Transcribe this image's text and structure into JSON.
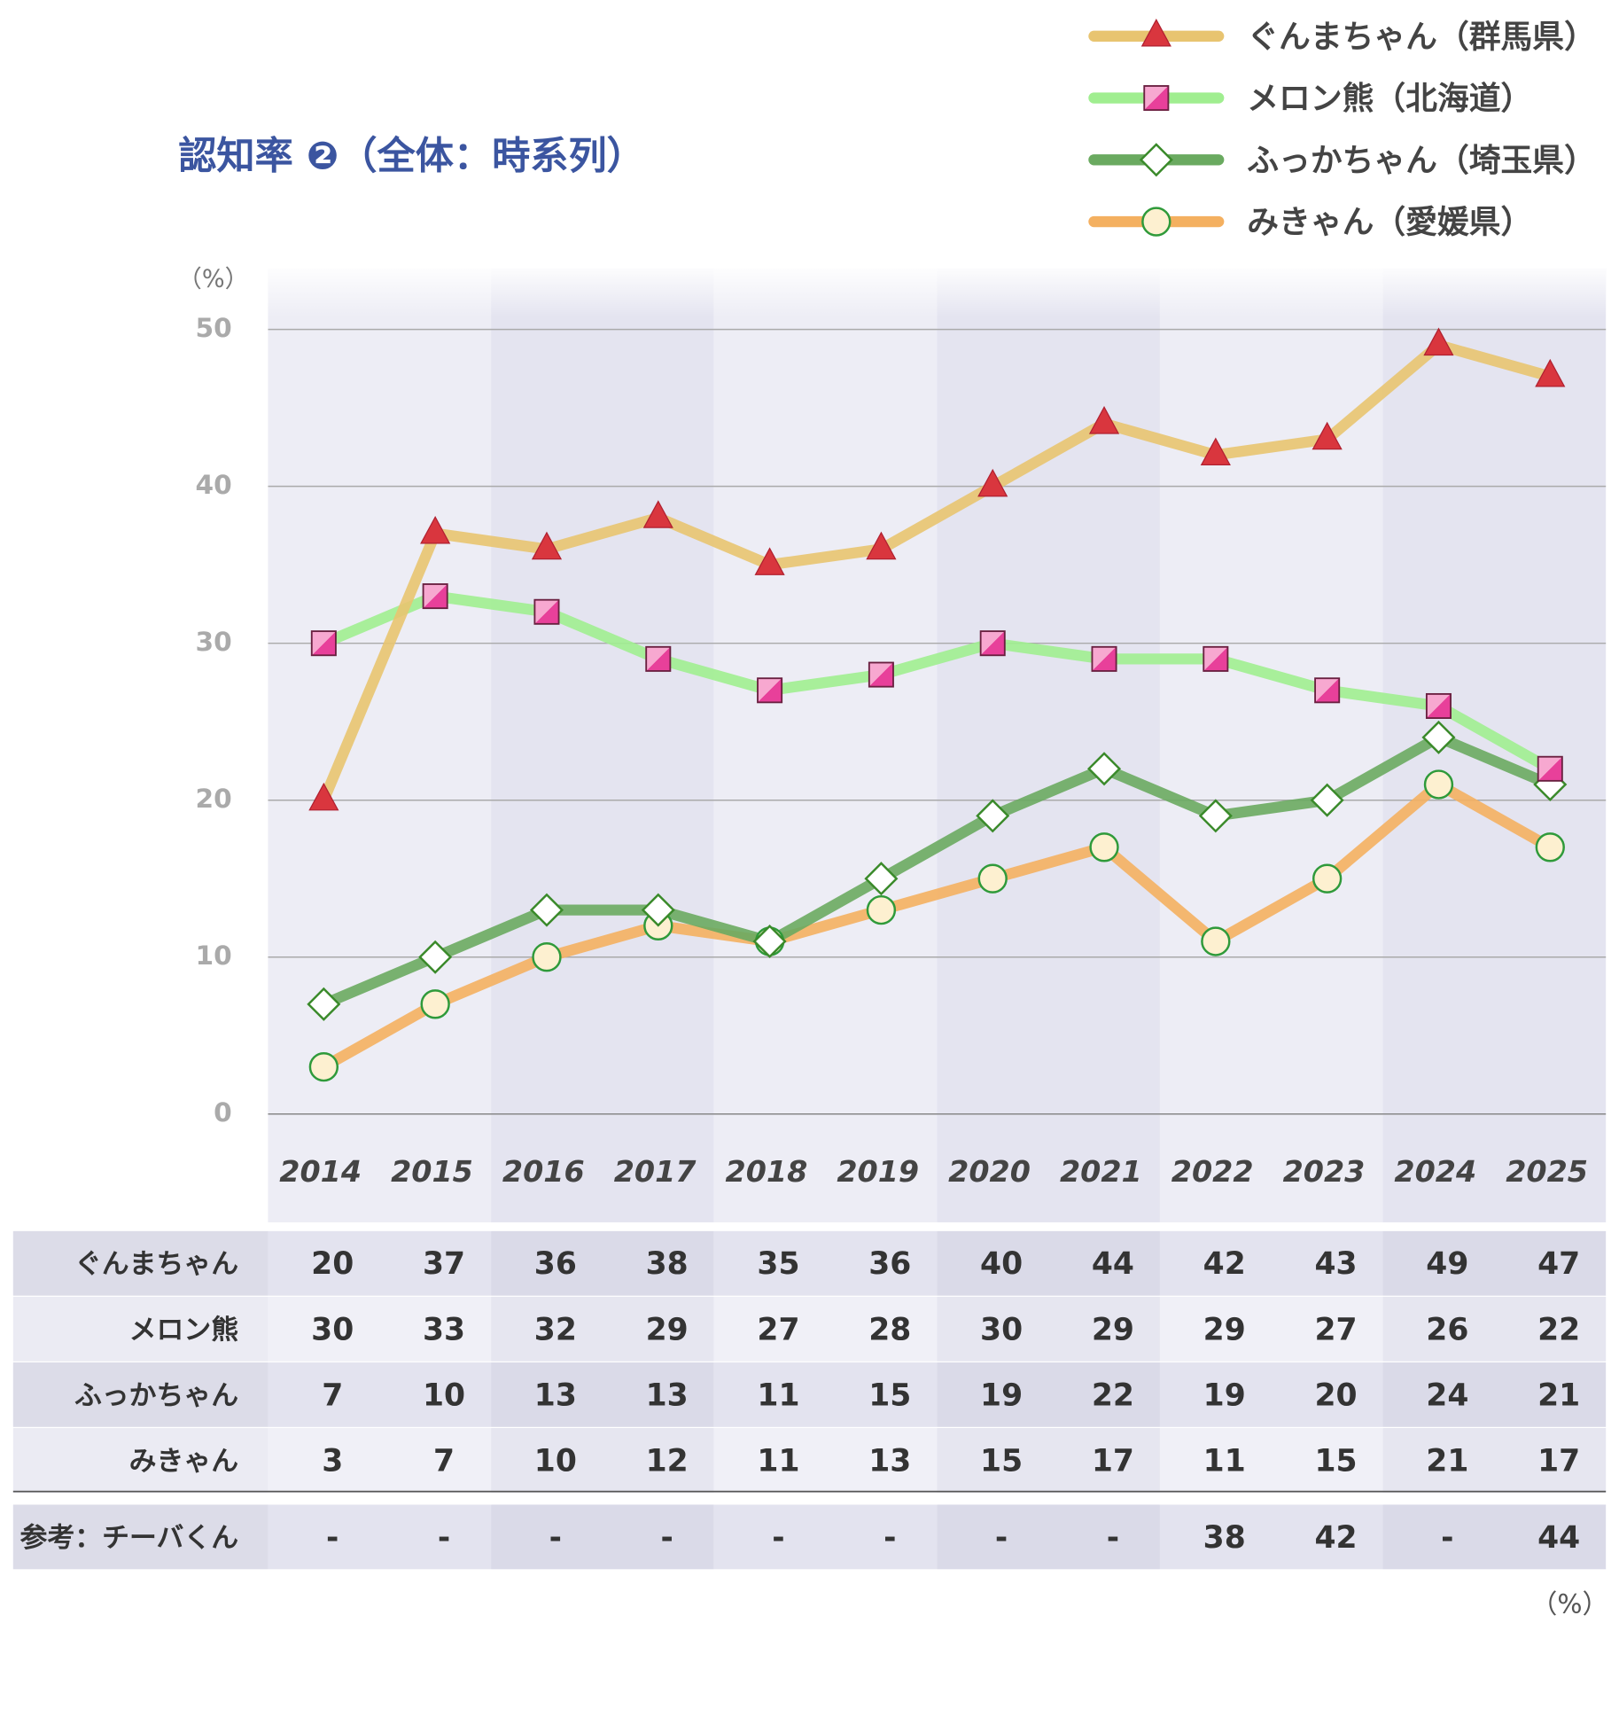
{
  "chart_data": {
    "type": "line",
    "title": "認知率 ❷（全体：時系列）",
    "y_unit": "（%）",
    "table_unit": "（%）",
    "categories": [
      "2014",
      "2015",
      "2016",
      "2017",
      "2018",
      "2019",
      "2020",
      "2021",
      "2022",
      "2023",
      "2024",
      "2025"
    ],
    "highlight_color": "#d81b5a",
    "ylim": [
      0,
      50
    ],
    "yticks": [
      0,
      10,
      20,
      30,
      40,
      50
    ],
    "grid": true,
    "series": [
      {
        "name": "ぐんまちゃん（群馬県）",
        "row_label": "ぐんまちゃん",
        "color": "#e8c470",
        "marker": "triangle",
        "marker_color": "#d9363e",
        "values": [
          20,
          37,
          36,
          38,
          35,
          36,
          40,
          44,
          42,
          43,
          49,
          47
        ]
      },
      {
        "name": "メロン熊（北海道）",
        "row_label": "メロン熊",
        "color": "#a0ee90",
        "marker": "square",
        "marker_color": "#e8409a",
        "values": [
          30,
          33,
          32,
          29,
          27,
          28,
          30,
          29,
          29,
          27,
          26,
          22
        ]
      },
      {
        "name": "ふっかちゃん（埼玉県）",
        "row_label": "ふっかちゃん",
        "color": "#6aaa60",
        "marker": "diamond",
        "marker_color": "#ffffff",
        "values": [
          7,
          10,
          13,
          13,
          11,
          15,
          19,
          22,
          19,
          20,
          24,
          21
        ]
      },
      {
        "name": "みきゃん（愛媛県）",
        "row_label": "みきゃん",
        "color": "#f4b060",
        "marker": "circle",
        "marker_color": "#fdf0d0",
        "values": [
          3,
          7,
          10,
          12,
          11,
          13,
          15,
          17,
          11,
          15,
          21,
          17
        ]
      }
    ],
    "reference": {
      "row_label": "参考：チーバくん",
      "values": [
        null,
        null,
        null,
        null,
        null,
        null,
        null,
        null,
        38,
        42,
        null,
        44
      ],
      "value_labels": [
        "-",
        "-",
        "-",
        "-",
        "-",
        "-",
        "-",
        "-",
        "38",
        "42",
        "-",
        "44"
      ]
    }
  }
}
